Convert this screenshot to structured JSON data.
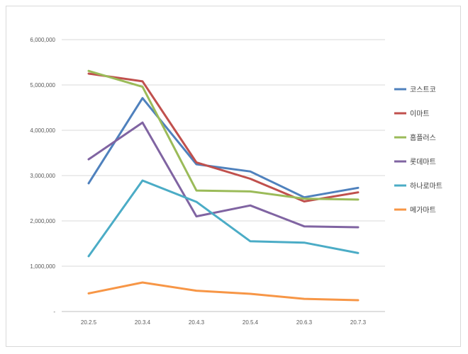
{
  "chart_data": {
    "type": "line",
    "title": "",
    "xlabel": "",
    "ylabel": "",
    "categories": [
      "20.2.5",
      "20.3.4",
      "20.4.3",
      "20.5.4",
      "20.6.3",
      "20.7.3"
    ],
    "ylim": [
      0,
      6000000
    ],
    "yticks": [
      0,
      1000000,
      2000000,
      3000000,
      4000000,
      5000000,
      6000000
    ],
    "ytick_labels": [
      "-",
      "1,000,000",
      "2,000,000",
      "3,000,000",
      "4,000,000",
      "5,000,000",
      "6,000,000"
    ],
    "grid": true,
    "legend_position": "right",
    "series": [
      {
        "name": "코스트코",
        "color": "#4f81bd",
        "values": [
          2830000,
          4710000,
          3250000,
          3090000,
          2520000,
          2730000
        ]
      },
      {
        "name": "이마트",
        "color": "#c0504d",
        "values": [
          5250000,
          5080000,
          3290000,
          2930000,
          2430000,
          2630000
        ]
      },
      {
        "name": "홈플러스",
        "color": "#9bbb59",
        "values": [
          5310000,
          4960000,
          2670000,
          2650000,
          2490000,
          2470000
        ]
      },
      {
        "name": "롯데마트",
        "color": "#8064a2",
        "values": [
          3360000,
          4170000,
          2100000,
          2340000,
          1880000,
          1860000
        ]
      },
      {
        "name": "하나로마트",
        "color": "#4bacc6",
        "values": [
          1220000,
          2890000,
          2420000,
          1550000,
          1520000,
          1290000
        ]
      },
      {
        "name": "메가마트",
        "color": "#f79646",
        "values": [
          400000,
          640000,
          460000,
          390000,
          280000,
          250000
        ]
      }
    ]
  }
}
